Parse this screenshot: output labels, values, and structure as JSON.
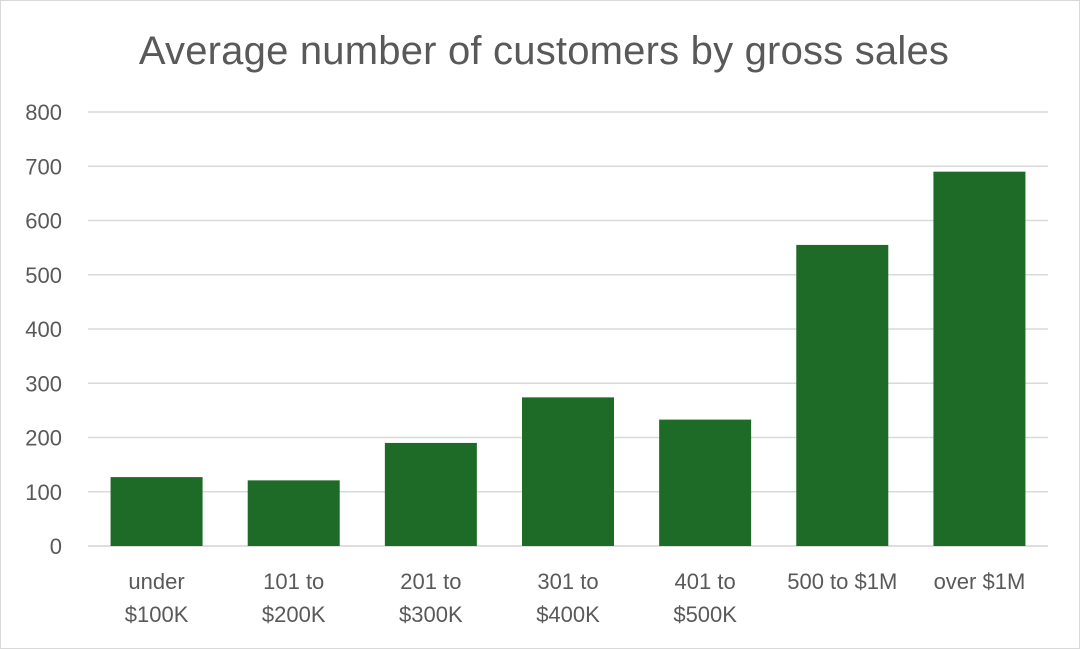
{
  "chart_data": {
    "type": "bar",
    "title": "Average number of customers by gross sales",
    "xlabel": "",
    "ylabel": "",
    "categories": [
      [
        "under",
        "$100K"
      ],
      [
        "101 to",
        "$200K"
      ],
      [
        "201 to",
        "$300K"
      ],
      [
        "301 to",
        "$400K"
      ],
      [
        "401 to",
        "$500K"
      ],
      [
        "500 to $1M"
      ],
      [
        "over $1M"
      ]
    ],
    "values": [
      127,
      121,
      190,
      274,
      233,
      555,
      690
    ],
    "ylim": [
      0,
      800
    ],
    "yticks": [
      "0",
      "100",
      "200",
      "300",
      "400",
      "500",
      "600",
      "700",
      "800"
    ],
    "grid": true,
    "legend": "none",
    "bar_color": "#1e6b27",
    "grid_color": "#d9d9d9",
    "text_color": "#595959"
  }
}
